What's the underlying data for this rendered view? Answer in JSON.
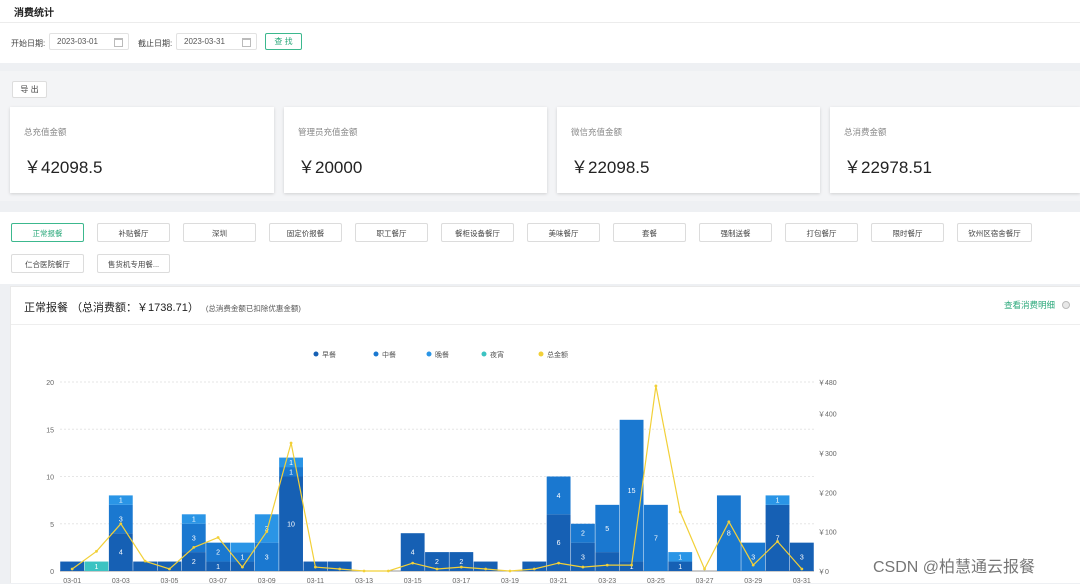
{
  "page": {
    "title": "消费统计"
  },
  "filter": {
    "start_label": "开始日期:",
    "start_value": "2023-03-01",
    "end_label": "截止日期:",
    "end_value": "2023-03-31",
    "search_label": "查 找"
  },
  "export_label": "导 出",
  "summary_cards": [
    {
      "label": "总充值金额",
      "value": "￥42098.5"
    },
    {
      "label": "管理员充值金额",
      "value": "￥20000"
    },
    {
      "label": "微信充值金额",
      "value": "￥22098.5"
    },
    {
      "label": "总消费金额",
      "value": "￥22978.51"
    }
  ],
  "categories": [
    "正常报餐",
    "补贴餐厅",
    "深圳",
    "固定价报餐",
    "职工餐厅",
    "餐柜设备餐厅",
    "美味餐厅",
    "套餐",
    "强制送餐",
    "打包餐厅",
    "限时餐厅",
    "钦州区宿舍餐厅",
    "仁合医院餐厅",
    "售货机专用餐..."
  ],
  "active_category": 0,
  "chart_header": {
    "name": "正常报餐",
    "total_text": "（总消费额：￥1738.71）",
    "note": "(总消费金额已扣除优惠金额)",
    "detail_link": "查看消费明细"
  },
  "watermark": "CSDN @柏慧通云报餐",
  "colors": {
    "accent": "#2aa87a",
    "breakfast": "#1660b4",
    "lunch": "#1a78d0",
    "dinner": "#2a95e6",
    "late": "#3cc3c2",
    "total_line": "#f2d038"
  },
  "chart_data": {
    "type": "bar",
    "stacked": true,
    "x": [
      "03-01",
      "03-02",
      "03-03",
      "03-04",
      "03-05",
      "03-06",
      "03-07",
      "03-08",
      "03-09",
      "03-10",
      "03-11",
      "03-12",
      "03-13",
      "03-14",
      "03-15",
      "03-16",
      "03-17",
      "03-18",
      "03-19",
      "03-20",
      "03-21",
      "03-22",
      "03-23",
      "03-24",
      "03-25",
      "03-26",
      "03-27",
      "03-28",
      "03-29",
      "03-30",
      "03-31"
    ],
    "x_tick_labels": [
      "03-01",
      "03-03",
      "03-05",
      "03-07",
      "03-09",
      "03-11",
      "03-13",
      "03-15",
      "03-17",
      "03-19",
      "03-21",
      "03-23",
      "03-25",
      "03-27",
      "03-29",
      "03-31"
    ],
    "left_axis": {
      "min": 0,
      "max": 20,
      "ticks": [
        "0",
        "5",
        "10",
        "15",
        "20"
      ]
    },
    "right_axis": {
      "min": 0,
      "max": 480,
      "ticks": [
        "￥0",
        "￥100",
        "￥200",
        "￥300",
        "￥400",
        "￥480"
      ]
    },
    "series": [
      {
        "name": "早餐",
        "values": [
          1,
          0,
          4,
          1,
          1,
          2,
          1,
          1,
          0,
          10,
          1,
          1,
          0,
          0,
          4,
          2,
          2,
          1,
          0,
          1,
          6,
          3,
          2,
          1,
          0,
          1,
          0,
          0,
          0,
          7,
          3
        ]
      },
      {
        "name": "中餐",
        "values": [
          0,
          0,
          3,
          0,
          0,
          3,
          2,
          1,
          3,
          1,
          0,
          0,
          0,
          0,
          0,
          0,
          0,
          0,
          0,
          0,
          4,
          2,
          5,
          15,
          7,
          0,
          0,
          8,
          3,
          0,
          0
        ]
      },
      {
        "name": "晚餐",
        "values": [
          0,
          0,
          1,
          0,
          0,
          1,
          0,
          1,
          3,
          1,
          0,
          0,
          0,
          0,
          0,
          0,
          0,
          0,
          0,
          0,
          0,
          0,
          0,
          0,
          0,
          1,
          0,
          0,
          0,
          1,
          0
        ]
      },
      {
        "name": "夜宵",
        "values": [
          0,
          1,
          0,
          0,
          0,
          0,
          0,
          0,
          0,
          0,
          0,
          0,
          0,
          0,
          0,
          0,
          0,
          0,
          0,
          0,
          0,
          0,
          0,
          0,
          0,
          0,
          0,
          0,
          0,
          0,
          0
        ]
      },
      {
        "name": "总金额",
        "axis": "right",
        "values": [
          5,
          50,
          120,
          25,
          5,
          60,
          85,
          10,
          100,
          325,
          10,
          5,
          0,
          0,
          20,
          5,
          10,
          5,
          0,
          5,
          20,
          10,
          15,
          15,
          470,
          150,
          5,
          125,
          15,
          75,
          5
        ]
      }
    ],
    "bar_labels": [
      [
        null,
        null,
        "4",
        null,
        null,
        "2",
        "1",
        null,
        null,
        "10",
        null,
        null,
        null,
        null,
        "4",
        "2",
        "2",
        null,
        null,
        null,
        "6",
        "3",
        null,
        "1",
        null,
        "1",
        null,
        null,
        null,
        "7",
        "3"
      ],
      [
        null,
        null,
        "3",
        null,
        null,
        "3",
        "2",
        "1",
        "3",
        "1",
        null,
        null,
        null,
        null,
        null,
        null,
        null,
        null,
        null,
        null,
        "4",
        "2",
        "5",
        "15",
        "7",
        null,
        null,
        "8",
        "3",
        null,
        null
      ],
      [
        null,
        null,
        "1",
        null,
        null,
        "1",
        null,
        null,
        "3",
        "1",
        null,
        null,
        null,
        null,
        null,
        null,
        null,
        null,
        null,
        null,
        null,
        null,
        null,
        null,
        null,
        "1",
        null,
        null,
        null,
        "1",
        null
      ],
      [
        null,
        "1",
        null,
        null,
        null,
        null,
        null,
        null,
        null,
        null,
        null,
        null,
        null,
        null,
        null,
        null,
        null,
        null,
        null,
        null,
        null,
        null,
        null,
        null,
        null,
        null,
        null,
        null,
        null,
        null,
        null
      ]
    ]
  }
}
